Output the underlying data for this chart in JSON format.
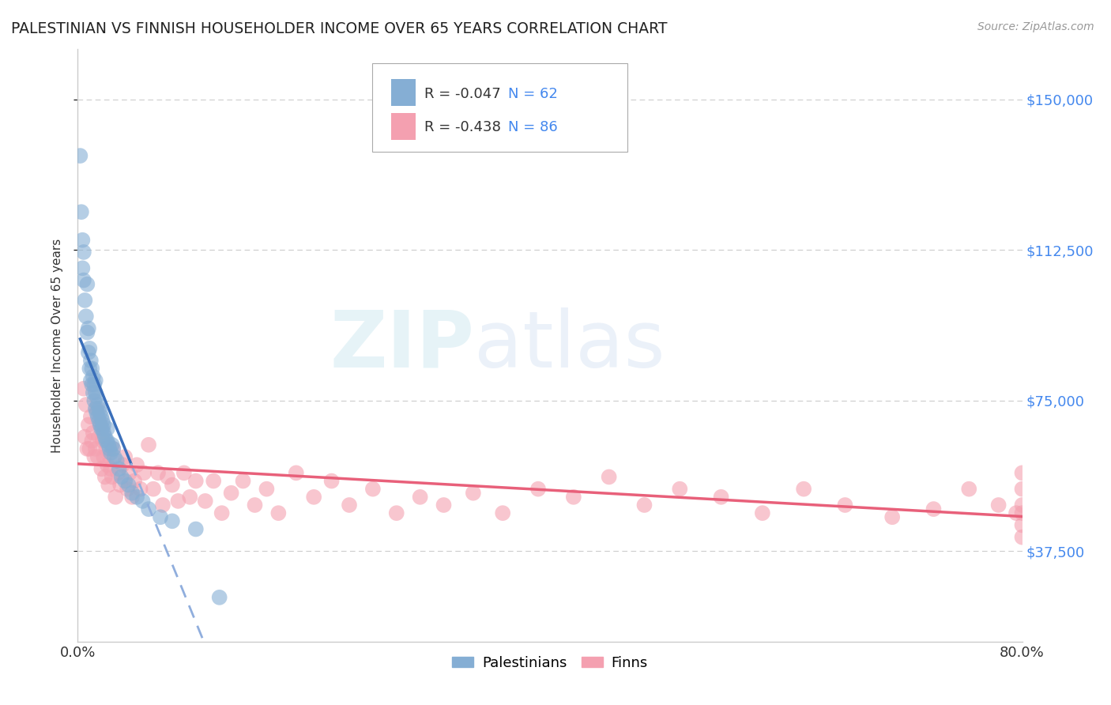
{
  "title": "PALESTINIAN VS FINNISH HOUSEHOLDER INCOME OVER 65 YEARS CORRELATION CHART",
  "source": "Source: ZipAtlas.com",
  "ylabel": "Householder Income Over 65 years",
  "ytick_values": [
    37500,
    75000,
    112500,
    150000
  ],
  "ytick_labels": [
    "$37,500",
    "$75,000",
    "$112,500",
    "$150,000"
  ],
  "xlim": [
    0.0,
    0.8
  ],
  "ylim": [
    15000,
    162500
  ],
  "watermark_zip": "ZIP",
  "watermark_atlas": "atlas",
  "legend_r_blue": "R = -0.047",
  "legend_n_blue": "N = 62",
  "legend_r_pink": "R = -0.438",
  "legend_n_pink": "N = 86",
  "blue_color": "#85aed4",
  "pink_color": "#f4a0b0",
  "trend_blue_solid": "#3a6fba",
  "trend_blue_dash": "#90aedd",
  "trend_pink": "#e8607a",
  "palestinians_x": [
    0.002,
    0.003,
    0.004,
    0.004,
    0.005,
    0.005,
    0.006,
    0.007,
    0.008,
    0.008,
    0.009,
    0.009,
    0.01,
    0.01,
    0.011,
    0.011,
    0.012,
    0.012,
    0.013,
    0.013,
    0.014,
    0.014,
    0.015,
    0.015,
    0.015,
    0.016,
    0.016,
    0.017,
    0.017,
    0.018,
    0.018,
    0.019,
    0.019,
    0.02,
    0.02,
    0.021,
    0.021,
    0.022,
    0.022,
    0.023,
    0.024,
    0.025,
    0.025,
    0.026,
    0.027,
    0.028,
    0.029,
    0.03,
    0.031,
    0.033,
    0.035,
    0.037,
    0.04,
    0.043,
    0.046,
    0.05,
    0.055,
    0.06,
    0.07,
    0.08,
    0.1,
    0.12
  ],
  "palestinians_y": [
    136000,
    122000,
    108000,
    115000,
    105000,
    112000,
    100000,
    96000,
    92000,
    104000,
    87000,
    93000,
    83000,
    88000,
    80000,
    85000,
    79000,
    83000,
    77000,
    81000,
    75000,
    79000,
    73000,
    77000,
    80000,
    72000,
    76000,
    71000,
    74000,
    70000,
    73000,
    69000,
    72000,
    68000,
    71000,
    68000,
    70000,
    67000,
    69000,
    66000,
    65000,
    65000,
    68000,
    64000,
    63000,
    62000,
    64000,
    63000,
    61000,
    60000,
    58000,
    56000,
    55000,
    54000,
    52000,
    51000,
    50000,
    48000,
    46000,
    45000,
    43000,
    26000
  ],
  "finns_x": [
    0.005,
    0.006,
    0.007,
    0.008,
    0.009,
    0.01,
    0.011,
    0.012,
    0.013,
    0.014,
    0.015,
    0.016,
    0.017,
    0.018,
    0.019,
    0.02,
    0.021,
    0.022,
    0.023,
    0.024,
    0.025,
    0.026,
    0.027,
    0.028,
    0.029,
    0.03,
    0.032,
    0.034,
    0.036,
    0.038,
    0.04,
    0.042,
    0.044,
    0.046,
    0.048,
    0.05,
    0.053,
    0.056,
    0.06,
    0.064,
    0.068,
    0.072,
    0.076,
    0.08,
    0.085,
    0.09,
    0.095,
    0.1,
    0.108,
    0.115,
    0.122,
    0.13,
    0.14,
    0.15,
    0.16,
    0.17,
    0.185,
    0.2,
    0.215,
    0.23,
    0.25,
    0.27,
    0.29,
    0.31,
    0.335,
    0.36,
    0.39,
    0.42,
    0.45,
    0.48,
    0.51,
    0.545,
    0.58,
    0.615,
    0.65,
    0.69,
    0.725,
    0.755,
    0.78,
    0.795,
    0.8,
    0.8,
    0.8,
    0.8,
    0.8,
    0.8
  ],
  "finns_y": [
    78000,
    66000,
    74000,
    63000,
    69000,
    63000,
    71000,
    65000,
    67000,
    61000,
    63000,
    73000,
    61000,
    66000,
    69000,
    58000,
    65000,
    61000,
    56000,
    63000,
    59000,
    54000,
    61000,
    58000,
    56000,
    63000,
    51000,
    57000,
    54000,
    59000,
    61000,
    53000,
    57000,
    51000,
    55000,
    59000,
    53000,
    57000,
    64000,
    53000,
    57000,
    49000,
    56000,
    54000,
    50000,
    57000,
    51000,
    55000,
    50000,
    55000,
    47000,
    52000,
    55000,
    49000,
    53000,
    47000,
    57000,
    51000,
    55000,
    49000,
    53000,
    47000,
    51000,
    49000,
    52000,
    47000,
    53000,
    51000,
    56000,
    49000,
    53000,
    51000,
    47000,
    53000,
    49000,
    46000,
    48000,
    53000,
    49000,
    47000,
    44000,
    53000,
    49000,
    57000,
    41000,
    47000
  ],
  "blue_trend_x_end_solid": 0.045,
  "grid_color": "#cccccc",
  "spine_color": "#cccccc"
}
